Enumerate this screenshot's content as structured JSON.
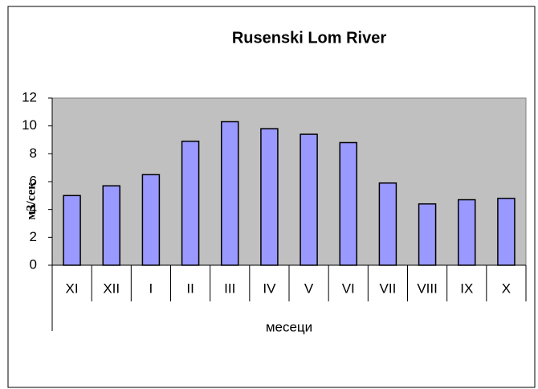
{
  "chart_data": {
    "type": "bar",
    "title": "Rusenski Lom River",
    "x_label": "месеци",
    "y_label": "м3/сек",
    "categories": [
      "XI",
      "XII",
      "I",
      "II",
      "III",
      "IV",
      "V",
      "VI",
      "VII",
      "VIII",
      "IX",
      "X"
    ],
    "values": [
      5.0,
      5.7,
      6.5,
      8.9,
      10.3,
      9.8,
      9.4,
      8.8,
      5.9,
      4.4,
      4.7,
      4.8
    ],
    "color": "#9999ff",
    "ylim": [
      0,
      12
    ],
    "yticks": [
      0,
      2,
      4,
      6,
      8,
      10,
      12
    ],
    "grid": false
  }
}
